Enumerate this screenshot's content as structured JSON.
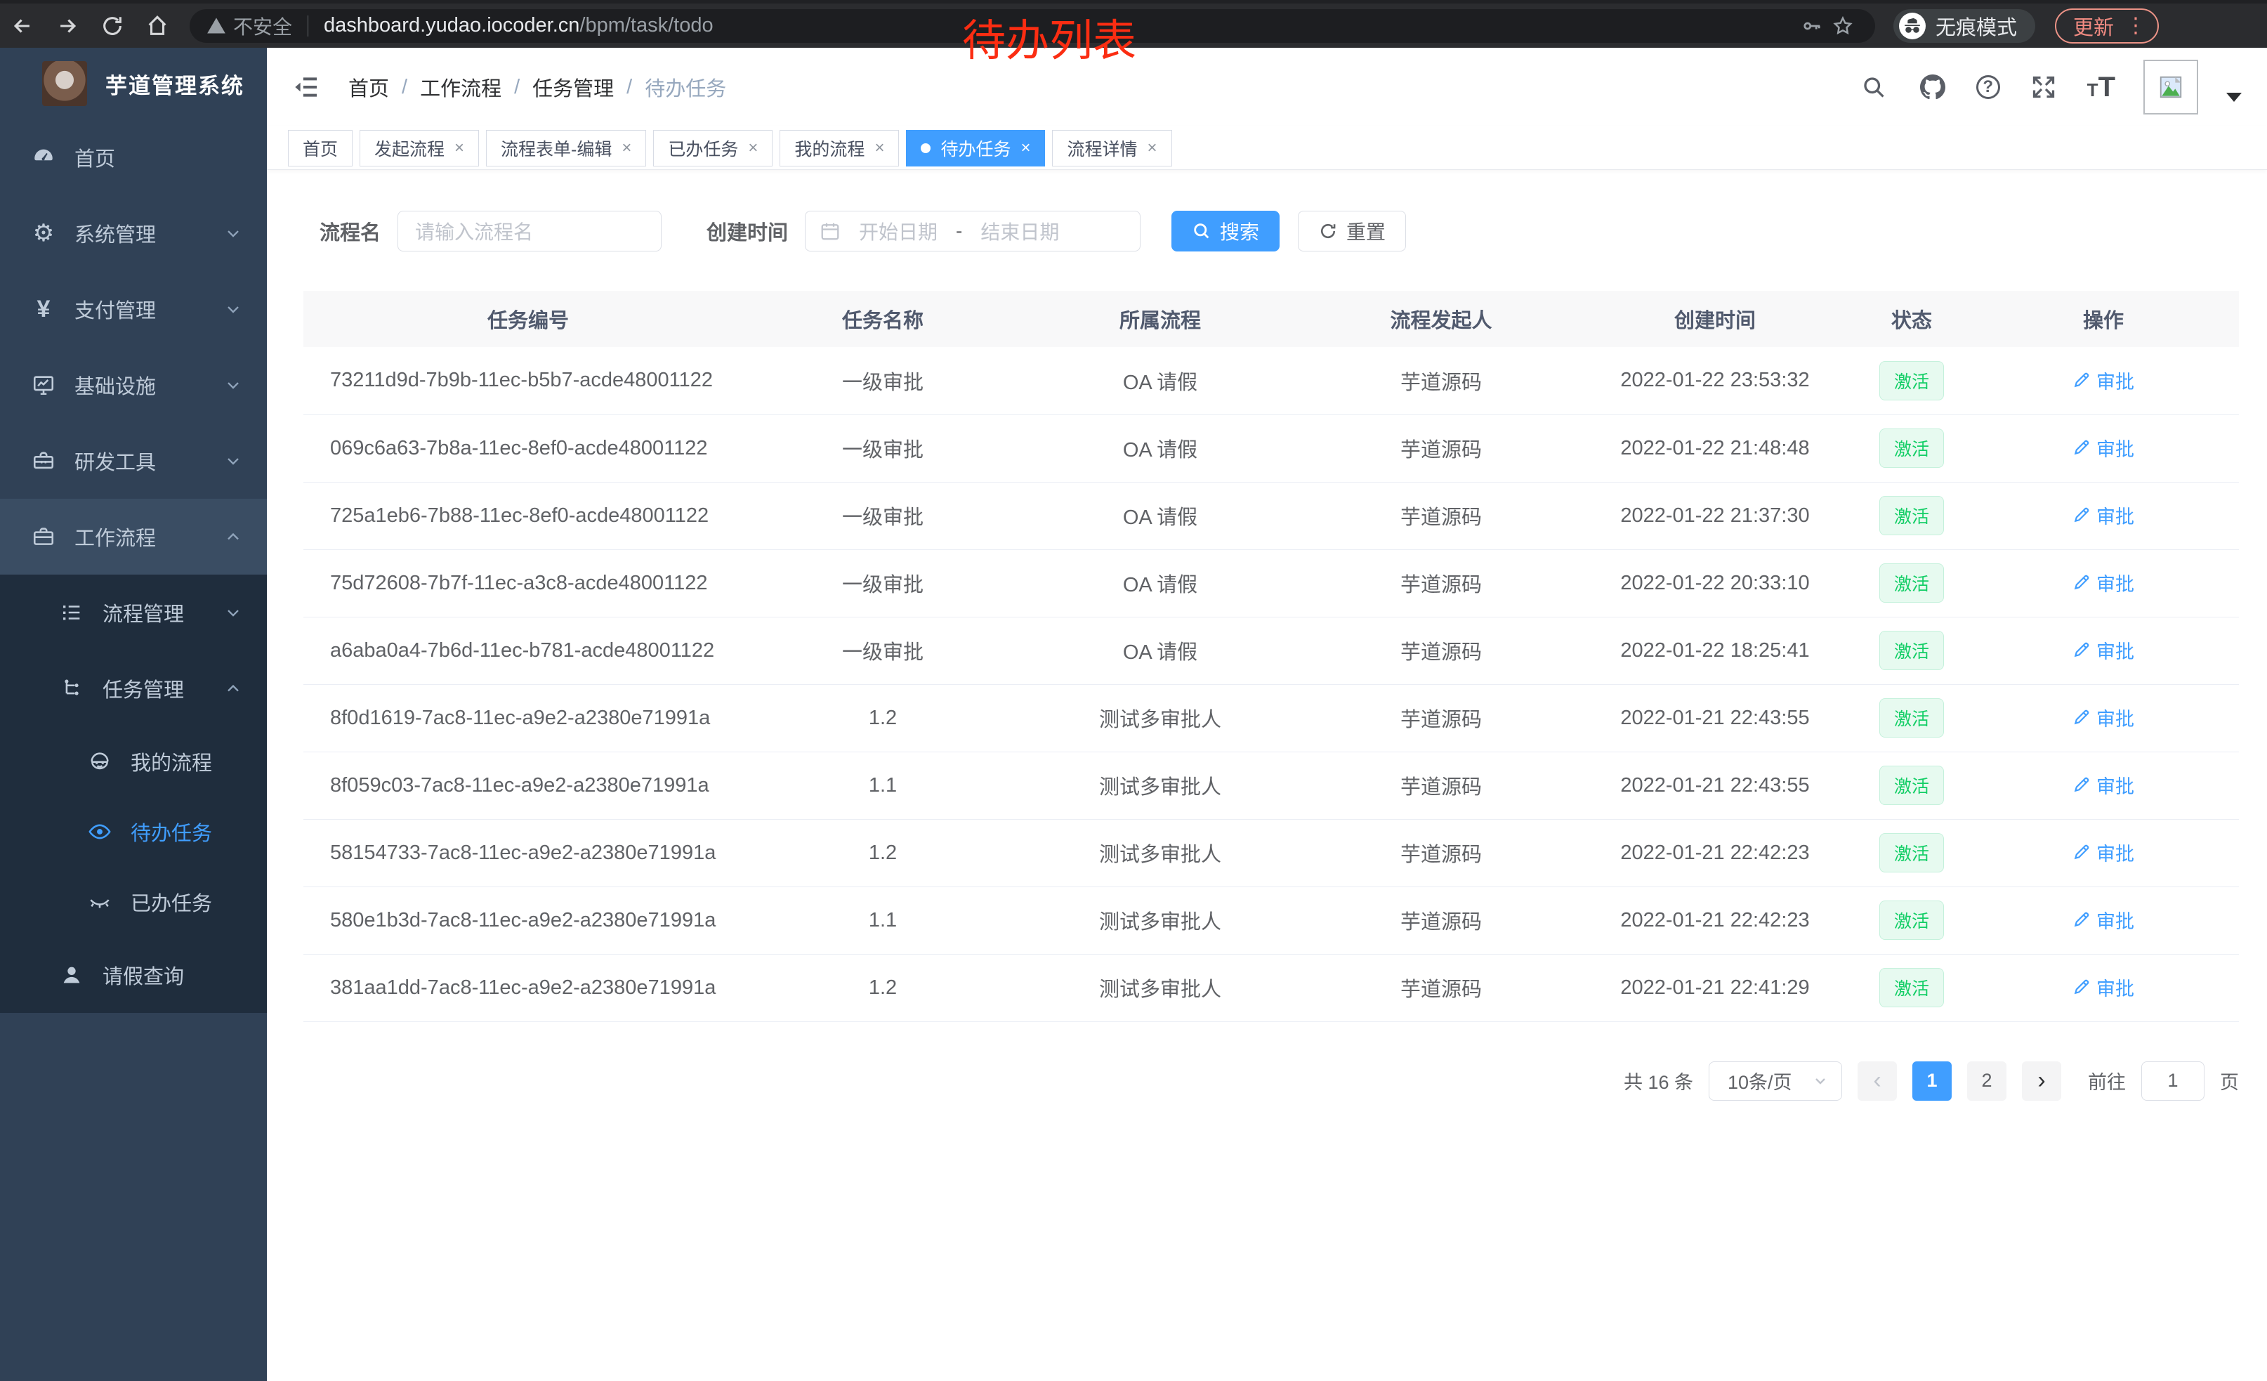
{
  "browser": {
    "security_label": "不安全",
    "url_host": "dashboard.yudao.iocoder.cn",
    "url_path": "/bpm/task/todo",
    "incognito_label": "无痕模式",
    "update_label": "更新",
    "menu_dots": "⋮"
  },
  "annotation": {
    "text": "待办列表",
    "color": "#fb2d12"
  },
  "sidebar": {
    "title": "芋道管理系统",
    "items": [
      {
        "label": "首页",
        "icon": "dashboard-icon",
        "level": 1
      },
      {
        "label": "系统管理",
        "icon": "gear-icon",
        "level": 1,
        "chevron": "down"
      },
      {
        "label": "支付管理",
        "icon": "yen-icon",
        "level": 1,
        "chevron": "down"
      },
      {
        "label": "基础设施",
        "icon": "monitor-icon",
        "level": 1,
        "chevron": "down"
      },
      {
        "label": "研发工具",
        "icon": "toolbox-icon",
        "level": 1,
        "chevron": "down"
      },
      {
        "label": "工作流程",
        "icon": "briefcase-icon",
        "level": 1,
        "chevron": "up",
        "highlight": true
      },
      {
        "label": "流程管理",
        "icon": "list-icon",
        "level": 2,
        "chevron": "down",
        "dark": true
      },
      {
        "label": "任务管理",
        "icon": "tree-icon",
        "level": 2,
        "chevron": "up",
        "dark": true
      },
      {
        "label": "我的流程",
        "icon": "robot-icon",
        "level": 3,
        "dark": true
      },
      {
        "label": "待办任务",
        "icon": "eye-icon",
        "level": 3,
        "dark": true,
        "active": true
      },
      {
        "label": "已办任务",
        "icon": "eye-closed-icon",
        "level": 3,
        "dark": true
      },
      {
        "label": "请假查询",
        "icon": "person-icon",
        "level": 2,
        "dark": true
      }
    ]
  },
  "breadcrumb": {
    "separator": "/",
    "items": [
      "首页",
      "工作流程",
      "任务管理",
      "待办任务"
    ]
  },
  "topbar_icons": [
    "search-icon",
    "github-icon",
    "help-icon",
    "fullscreen-icon",
    "font-size-icon",
    "avatar"
  ],
  "tabs": [
    {
      "label": "首页",
      "closable": false
    },
    {
      "label": "发起流程",
      "closable": true
    },
    {
      "label": "流程表单-编辑",
      "closable": true
    },
    {
      "label": "已办任务",
      "closable": true
    },
    {
      "label": "我的流程",
      "closable": true
    },
    {
      "label": "待办任务",
      "closable": true,
      "active": true
    },
    {
      "label": "流程详情",
      "closable": true
    }
  ],
  "filters": {
    "name_label": "流程名",
    "name_placeholder": "请输入流程名",
    "time_label": "创建时间",
    "start_placeholder": "开始日期",
    "range_separator": "-",
    "end_placeholder": "结束日期",
    "search_label": "搜索",
    "reset_label": "重置"
  },
  "table": {
    "columns": [
      "任务编号",
      "任务名称",
      "所属流程",
      "流程发起人",
      "创建时间",
      "状态",
      "操作"
    ],
    "rows": [
      {
        "id": "73211d9d-7b9b-11ec-b5b7-acde48001122",
        "name": "一级审批",
        "process": "OA 请假",
        "initiator": "芋道源码",
        "created": "2022-01-22 23:53:32",
        "status": "激活",
        "action": "审批"
      },
      {
        "id": "069c6a63-7b8a-11ec-8ef0-acde48001122",
        "name": "一级审批",
        "process": "OA 请假",
        "initiator": "芋道源码",
        "created": "2022-01-22 21:48:48",
        "status": "激活",
        "action": "审批"
      },
      {
        "id": "725a1eb6-7b88-11ec-8ef0-acde48001122",
        "name": "一级审批",
        "process": "OA 请假",
        "initiator": "芋道源码",
        "created": "2022-01-22 21:37:30",
        "status": "激活",
        "action": "审批"
      },
      {
        "id": "75d72608-7b7f-11ec-a3c8-acde48001122",
        "name": "一级审批",
        "process": "OA 请假",
        "initiator": "芋道源码",
        "created": "2022-01-22 20:33:10",
        "status": "激活",
        "action": "审批"
      },
      {
        "id": "a6aba0a4-7b6d-11ec-b781-acde48001122",
        "name": "一级审批",
        "process": "OA 请假",
        "initiator": "芋道源码",
        "created": "2022-01-22 18:25:41",
        "status": "激活",
        "action": "审批"
      },
      {
        "id": "8f0d1619-7ac8-11ec-a9e2-a2380e71991a",
        "name": "1.2",
        "process": "测试多审批人",
        "initiator": "芋道源码",
        "created": "2022-01-21 22:43:55",
        "status": "激活",
        "action": "审批"
      },
      {
        "id": "8f059c03-7ac8-11ec-a9e2-a2380e71991a",
        "name": "1.1",
        "process": "测试多审批人",
        "initiator": "芋道源码",
        "created": "2022-01-21 22:43:55",
        "status": "激活",
        "action": "审批"
      },
      {
        "id": "58154733-7ac8-11ec-a9e2-a2380e71991a",
        "name": "1.2",
        "process": "测试多审批人",
        "initiator": "芋道源码",
        "created": "2022-01-21 22:42:23",
        "status": "激活",
        "action": "审批"
      },
      {
        "id": "580e1b3d-7ac8-11ec-a9e2-a2380e71991a",
        "name": "1.1",
        "process": "测试多审批人",
        "initiator": "芋道源码",
        "created": "2022-01-21 22:42:23",
        "status": "激活",
        "action": "审批"
      },
      {
        "id": "381aa1dd-7ac8-11ec-a9e2-a2380e71991a",
        "name": "1.2",
        "process": "测试多审批人",
        "initiator": "芋道源码",
        "created": "2022-01-21 22:41:29",
        "status": "激活",
        "action": "审批"
      }
    ]
  },
  "pagination": {
    "total_label": "共 16 条",
    "page_size_label": "10条/页",
    "prev": "‹",
    "next": "›",
    "pages": [
      "1",
      "2"
    ],
    "active_page": "1",
    "goto_label": "前往",
    "goto_value": "1",
    "unit_label": "页"
  },
  "colors": {
    "accent": "#409eff",
    "success": "#13ce66",
    "sidebar_bg": "#304156",
    "submenu_bg": "#1f2d3d"
  }
}
